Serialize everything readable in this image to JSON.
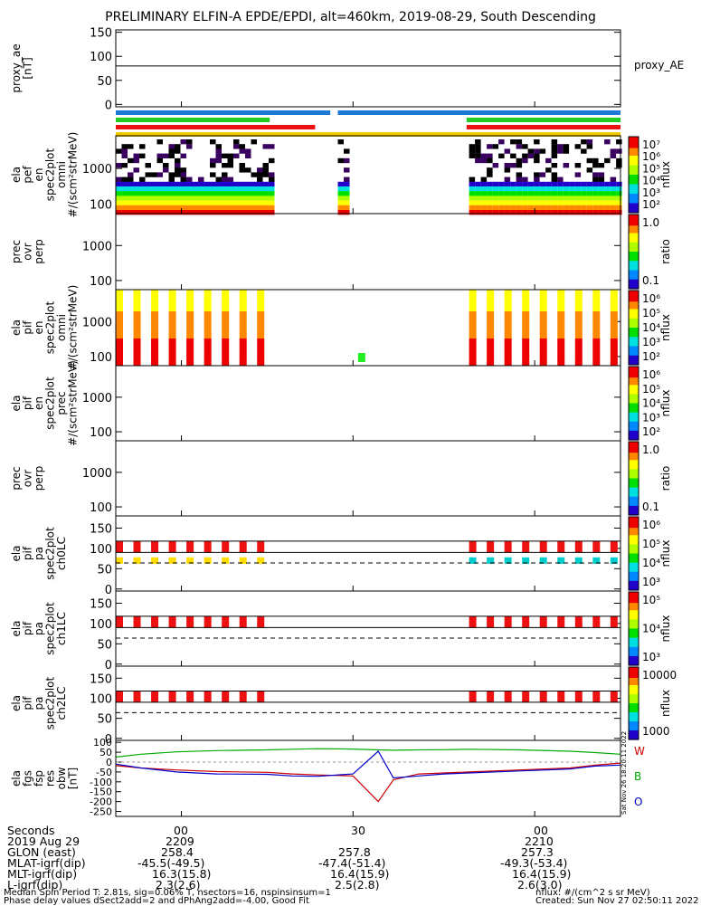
{
  "title": "PRELIMINARY ELFIN-A EPDE/EPDI, alt=460km, 2019-08-29, South Descending",
  "side_labels": {
    "proxy_ae": "proxy_AE",
    "W": "W",
    "B": "B",
    "O": "O",
    "stamp": "Sat Nov 26 18:20:11 2022"
  },
  "colors": {
    "W": "#cc0000",
    "B": "#00aa00",
    "O": "#0000cc"
  },
  "footer": {
    "rows": [
      {
        "label": "Seconds",
        "c1": "00",
        "c2": "30",
        "c3": "00"
      },
      {
        "label": "2019 Aug 29",
        "c1": "2209",
        "c2": "",
        "c3": "2210"
      },
      {
        "label": "GLON (east)",
        "c1": "258.4",
        "c2": "257.8",
        "c3": "257.3"
      },
      {
        "label": "MLAT-igrf(dip)",
        "c1": "-45.5(-49.5)",
        "c2": "-47.4(-51.4)",
        "c3": "-49.3(-53.4)"
      },
      {
        "label": "MLT-igrf(dip)",
        "c1": "16.3(15.8)",
        "c2": "16.4(15.9)",
        "c3": "16.4(15.9)"
      },
      {
        "label": "L-igrf(dip)",
        "c1": "2.3(2.6)",
        "c2": "2.5(2.8)",
        "c3": "2.6(3.0)"
      }
    ],
    "note1": "Median Spin Period T: 2.81s, sig=0.06% T, nsectors=16, nspinsinsum=1",
    "note2": "Phase delay values dSect2add=2 and dPhAng2add=-4.00, Good Fit",
    "nflux_note": "nflux: #/(cm^2 s sr MeV)",
    "created": "Created: Sun Nov 27 02:50:11 2022"
  },
  "chart_data": [
    {
      "type": "line",
      "panel": "proxy_ae",
      "ylabel": [
        "proxy_ae",
        "[nT]"
      ],
      "yticks": [
        "150",
        "100",
        "50",
        "0"
      ],
      "ylim": [
        -5,
        155
      ],
      "series": [
        {
          "values": [
            80
          ]
        }
      ],
      "status_bars": [
        {
          "color": "#1e78d6",
          "spans": [
            [
              0,
              0.425
            ],
            [
              0.44,
              1.0
            ]
          ]
        },
        {
          "color": "#22cc22",
          "spans": [
            [
              0,
              0.305
            ],
            [
              0.695,
              1.0
            ]
          ]
        },
        {
          "color": "#ee1111",
          "spans": [
            [
              0,
              0.395
            ],
            [
              0.695,
              1.0
            ]
          ]
        },
        {
          "color": "#f2cc00",
          "spans": [
            [
              0,
              1.0
            ]
          ]
        }
      ]
    },
    {
      "type": "heatmap",
      "panel": "ela_pef_en_spec2plot_omni",
      "ylabel": [
        "ela",
        "pef",
        "en",
        "spec2plot",
        "omni",
        "#/(scm²strMeV)"
      ],
      "yticks": [
        "1000",
        "100"
      ],
      "colorbar": {
        "label": "nflux",
        "ticks": [
          "10⁷",
          "10⁶",
          "10⁵",
          "10⁴",
          "10³",
          "10²"
        ]
      },
      "data_segments": [
        [
          0,
          0.31
        ],
        [
          0.44,
          0.455
        ],
        [
          0.7,
          1.0
        ]
      ]
    },
    {
      "type": "heatmap",
      "panel": "prec_ovr_perp_electrons",
      "ylabel": [
        "prec",
        "ovr",
        "perp"
      ],
      "yticks": [
        "1000",
        "100"
      ],
      "colorbar": {
        "label": "ratio",
        "ticks": [
          "1.0",
          "0.1"
        ]
      }
    },
    {
      "type": "heatmap",
      "panel": "ela_pif_en_spec2plot_omni",
      "ylabel": [
        "ela",
        "pif",
        "en",
        "spec2plot",
        "omni",
        "#/(scm²strMeV)"
      ],
      "yticks": [
        "1000",
        "100"
      ],
      "colorbar": {
        "label": "nflux",
        "ticks": [
          "10⁶",
          "10⁵",
          "10⁴",
          "10³",
          "10²"
        ]
      }
    },
    {
      "type": "heatmap",
      "panel": "ela_pif_en_spec2plot_prec",
      "ylabel": [
        "ela",
        "pif",
        "en",
        "spec2plot",
        "prec",
        "#/(scm²strMeV)"
      ],
      "yticks": [
        "1000",
        "100"
      ],
      "colorbar": {
        "label": "nflux",
        "ticks": [
          "10⁶",
          "10⁵",
          "10⁴",
          "10³",
          "10²"
        ]
      }
    },
    {
      "type": "heatmap",
      "panel": "prec_ovr_perp_ions",
      "ylabel": [
        "prec",
        "ovr",
        "perp"
      ],
      "yticks": [
        "1000",
        "100"
      ],
      "colorbar": {
        "label": "ratio",
        "ticks": [
          "1.0",
          "0.1"
        ]
      }
    },
    {
      "type": "heatmap",
      "panel": "ela_pif_pa_spec2plot_ch0LC",
      "ylabel": [
        "ela",
        "pif",
        "pa",
        "spec2plot",
        "ch0LC"
      ],
      "yticks": [
        "150",
        "100",
        "50",
        "0"
      ],
      "ylim": [
        -5,
        180
      ],
      "colorbar": {
        "label": "nflux",
        "ticks": [
          "10⁶",
          "10⁵",
          "10⁴",
          "10³"
        ]
      }
    },
    {
      "type": "heatmap",
      "panel": "ela_pif_pa_spec2plot_ch1LC",
      "ylabel": [
        "ela",
        "pif",
        "pa",
        "spec2plot",
        "ch1LC"
      ],
      "yticks": [
        "150",
        "100",
        "50",
        "0"
      ],
      "ylim": [
        -5,
        180
      ],
      "colorbar": {
        "label": "nflux",
        "ticks": [
          "10⁵",
          "10⁴",
          "10³"
        ]
      }
    },
    {
      "type": "heatmap",
      "panel": "ela_pif_pa_spec2plot_ch2LC",
      "ylabel": [
        "ela",
        "pif",
        "pa",
        "spec2plot",
        "ch2LC"
      ],
      "yticks": [
        "150",
        "100",
        "50",
        "0"
      ],
      "ylim": [
        -5,
        180
      ],
      "colorbar": {
        "label": "nflux",
        "ticks": [
          "10000",
          "1000"
        ]
      }
    },
    {
      "type": "line",
      "panel": "ela_fgs_fsp_res_obw",
      "ylabel": [
        "ela",
        "fgs",
        "fsp",
        "res",
        "obw",
        "[nT]"
      ],
      "yticks": [
        "100",
        "50",
        "0",
        "-50",
        "-100",
        "-150",
        "-200",
        "-250"
      ],
      "ylim": [
        -275,
        110
      ],
      "x": [
        0,
        0.05,
        0.12,
        0.2,
        0.3,
        0.35,
        0.4,
        0.47,
        0.52,
        0.55,
        0.6,
        0.65,
        0.7,
        0.8,
        0.9,
        0.95,
        1.0
      ],
      "series": [
        {
          "name": "W",
          "color": "#cc0000",
          "values": [
            -18,
            -30,
            -40,
            -48,
            -52,
            -60,
            -65,
            -70,
            -200,
            -90,
            -60,
            -55,
            -50,
            -40,
            -30,
            -15,
            -5
          ]
        },
        {
          "name": "B",
          "color": "#00aa00",
          "values": [
            25,
            40,
            52,
            58,
            62,
            65,
            68,
            66,
            62,
            60,
            62,
            63,
            65,
            62,
            55,
            48,
            40
          ]
        },
        {
          "name": "O",
          "color": "#0000cc",
          "values": [
            -10,
            -30,
            -50,
            -60,
            -62,
            -70,
            -72,
            -60,
            55,
            -80,
            -70,
            -60,
            -55,
            -45,
            -35,
            -20,
            -15
          ]
        }
      ]
    }
  ]
}
